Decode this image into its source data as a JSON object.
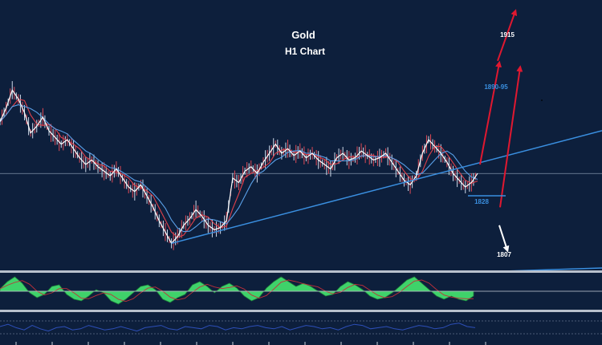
{
  "chart_data": {
    "type": "line",
    "title": "Gold",
    "subtitle": "H1 Chart",
    "annotations": [
      {
        "text": "1915",
        "value": 1915,
        "color": "#ffffff",
        "role": "upper-target"
      },
      {
        "text": "1890-95",
        "value": 1892,
        "color": "#3a8fe0",
        "role": "first-target"
      },
      {
        "text": "1828",
        "value": 1828,
        "color": "#3a8fe0",
        "role": "support-level"
      },
      {
        "text": "1807",
        "value": 1807,
        "color": "#ffffff",
        "role": "lower-target"
      }
    ],
    "price_series": [
      1866,
      1872,
      1880,
      1876,
      1870,
      1861,
      1864,
      1868,
      1862,
      1859,
      1856,
      1858,
      1854,
      1850,
      1847,
      1849,
      1846,
      1844,
      1842,
      1845,
      1841,
      1837,
      1835,
      1838,
      1833,
      1828,
      1822,
      1817,
      1812,
      1815,
      1820,
      1823,
      1827,
      1824,
      1820,
      1818,
      1819,
      1822,
      1841,
      1839,
      1844,
      1846,
      1843,
      1848,
      1852,
      1856,
      1852,
      1854,
      1851,
      1853,
      1850,
      1852,
      1849,
      1847,
      1845,
      1850,
      1852,
      1849,
      1850,
      1853,
      1851,
      1849,
      1850,
      1852,
      1848,
      1844,
      1840,
      1838,
      1842,
      1852,
      1858,
      1855,
      1852,
      1848,
      1843,
      1840,
      1837,
      1839,
      1843
    ],
    "trendline": [
      1812,
      1862
    ],
    "reference_level": 1843,
    "ylim": [
      1800,
      1920
    ],
    "projected_moves": [
      {
        "direction": "up",
        "from": 1847,
        "to": 1892,
        "color": "#e01830"
      },
      {
        "direction": "up",
        "from": 1828,
        "to": 1890,
        "color": "#e01830"
      },
      {
        "direction": "up",
        "from": 1893,
        "to": 1915,
        "color": "#e01830"
      },
      {
        "direction": "down",
        "from": 1820,
        "to": 1809,
        "color": "#ffffff"
      }
    ],
    "oscillator_series": [
      0.15,
      0.6,
      0.9,
      0.5,
      -0.1,
      -0.4,
      -0.2,
      0.3,
      0.4,
      -0.2,
      -0.5,
      -0.6,
      -0.3,
      0.1,
      -0.1,
      -0.6,
      -0.8,
      -0.5,
      -0.1,
      0.3,
      0.4,
      0.1,
      -0.5,
      -0.7,
      -0.4,
      -0.2,
      0.4,
      0.6,
      0.3,
      -0.1,
      0.3,
      0.5,
      0.2,
      -0.3,
      -0.6,
      -0.4,
      0.2,
      0.6,
      0.9,
      0.6,
      0.3,
      0.5,
      0.3,
      0.0,
      -0.3,
      -0.2,
      0.3,
      0.6,
      0.4,
      0.1,
      -0.3,
      -0.5,
      -0.4,
      -0.1,
      0.3,
      0.7,
      0.9,
      0.5,
      0.1,
      -0.3,
      -0.5,
      -0.3,
      -0.5,
      -0.6,
      -0.3
    ],
    "momentum_series": [
      0.5,
      0.7,
      0.4,
      0.2,
      0.6,
      0.3,
      0.1,
      0.4,
      0.5,
      0.2,
      0.3,
      0.6,
      0.4,
      0.2,
      0.3,
      0.5,
      0.3,
      0.1,
      0.4,
      0.5,
      0.6,
      0.3,
      0.2,
      0.5,
      0.4,
      0.3,
      0.6,
      0.5,
      0.2,
      0.4,
      0.3,
      0.5,
      0.6,
      0.4,
      0.3,
      0.5,
      0.2,
      0.4,
      0.6,
      0.5,
      0.3,
      0.4,
      0.2,
      0.5,
      0.7,
      0.6,
      0.3,
      0.4,
      0.5,
      0.3,
      0.2,
      0.4,
      0.6,
      0.5,
      0.3,
      0.4,
      0.7,
      0.8,
      0.5,
      0.4
    ],
    "grid": false,
    "colors": {
      "background": "#0d1f3c",
      "trendline": "#3a8fe0",
      "price": "#ffffff",
      "ma_fast": "#e0404a",
      "ma_slow": "#5aa0e8",
      "oscillator_fill": "#3fd26a",
      "momentum_line": "#2d4fb8",
      "panel_divider": "#b8c0cc"
    }
  }
}
